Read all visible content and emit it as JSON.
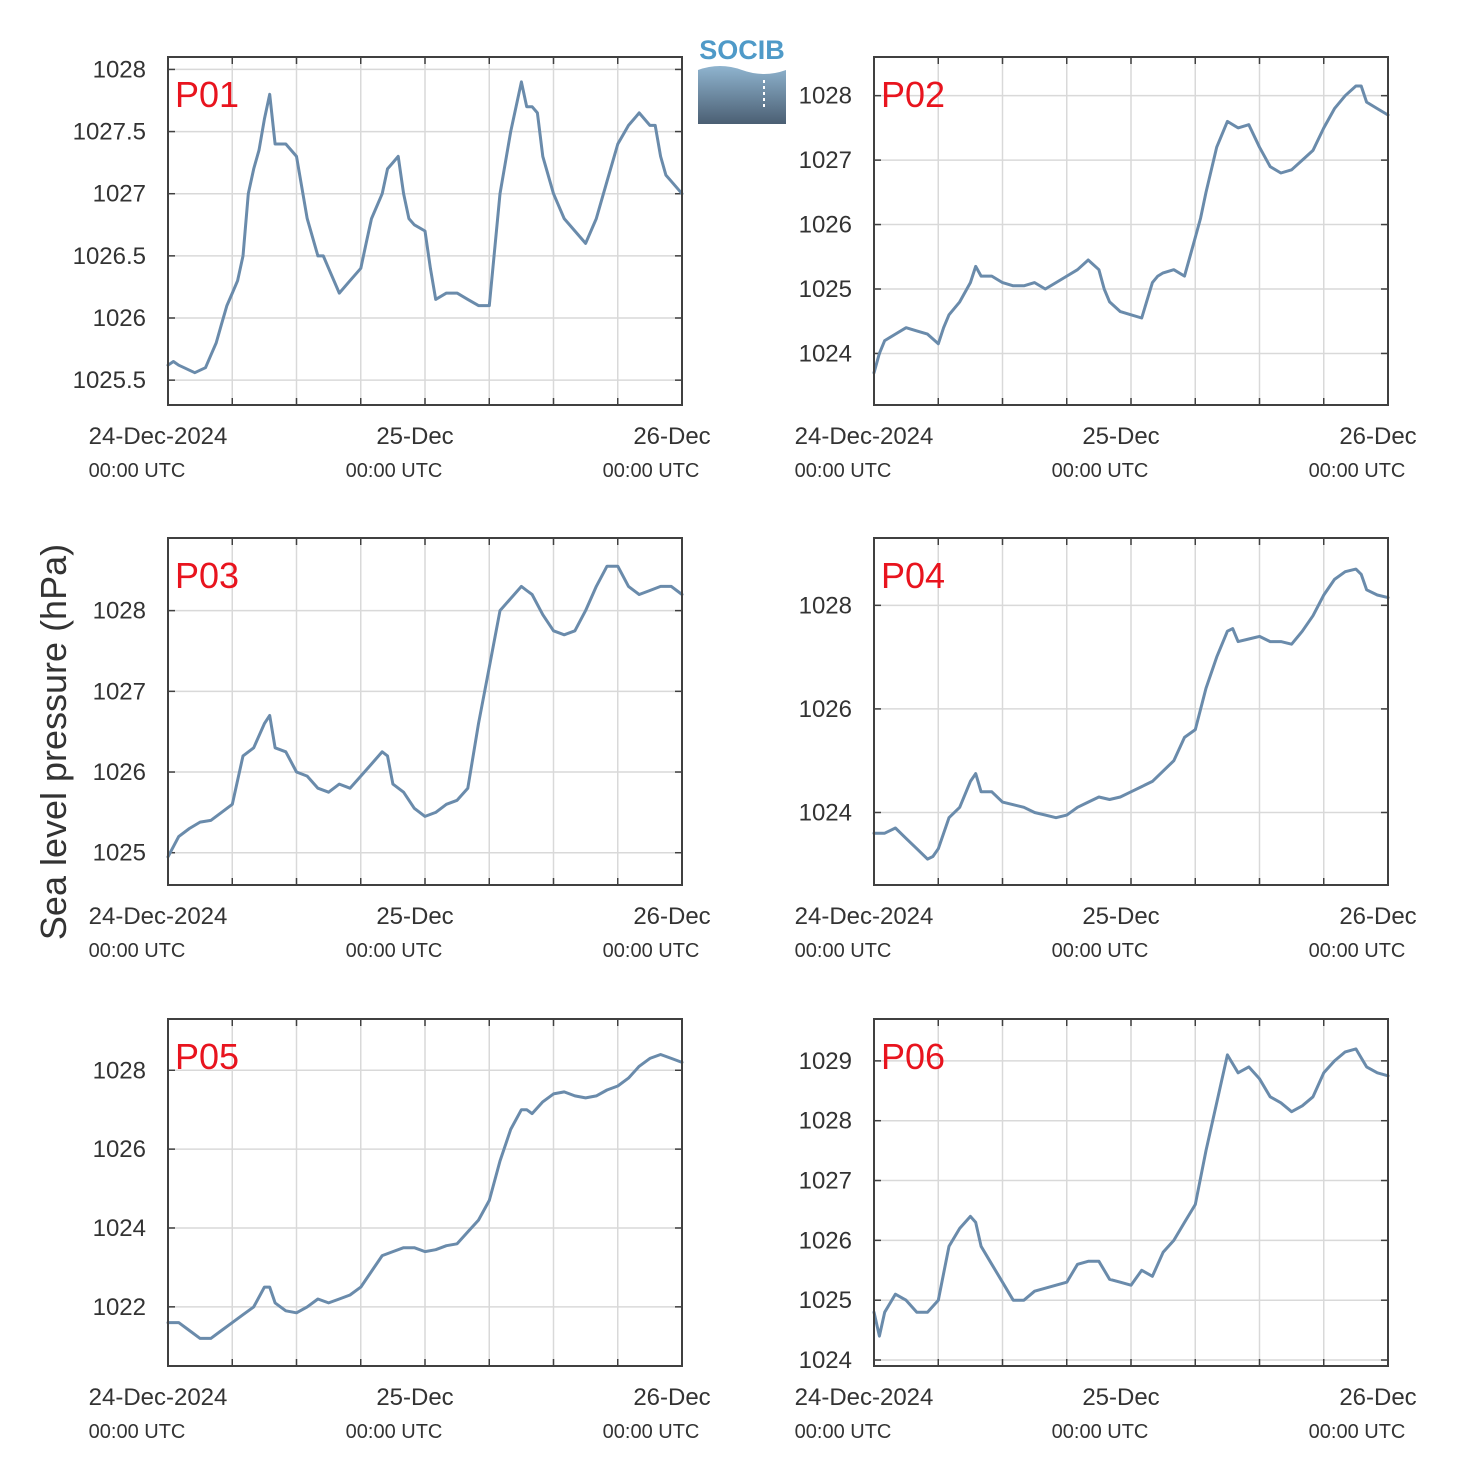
{
  "ylabel": "Sea level pressure (hPa)",
  "logo": {
    "text": "SOCIB",
    "text_color": "#4f9ac8",
    "top_color": "#8fb4cf",
    "bottom_color": "#4b5f73"
  },
  "colors": {
    "line": "#6a8bab",
    "label": "#e8141e",
    "grid": "#d9d9d9",
    "axis": "#404040"
  },
  "x_ticks": [
    {
      "hour": 0,
      "label": "24-Dec-2024",
      "sub": "00:00 UTC"
    },
    {
      "hour": 24,
      "label": "25-Dec",
      "sub": "00:00 UTC"
    },
    {
      "hour": 48,
      "label": "26-Dec",
      "sub": "00:00 UTC"
    }
  ],
  "chart_data": [
    {
      "type": "line",
      "label": "P01",
      "xlim": [
        0,
        48
      ],
      "ylim": [
        1025.3,
        1028.1
      ],
      "yticks": [
        1025.5,
        1026,
        1026.5,
        1027,
        1027.5,
        1028
      ],
      "ytick_labels": [
        "1025.5",
        "1026",
        "1026.5",
        "1027",
        "1027.5",
        "1028"
      ],
      "grid": true,
      "x_unit": "hours since 24-Dec-2024 00:00 UTC",
      "x": [
        0,
        0.5,
        1,
        1.5,
        2,
        2.5,
        3,
        3.5,
        4,
        4.5,
        5,
        5.5,
        6,
        6.5,
        7,
        7.5,
        8,
        8.5,
        9,
        9.5,
        10,
        11,
        12,
        13,
        14,
        14.5,
        15,
        16,
        17,
        18,
        18.5,
        19,
        20,
        20.5,
        21,
        21.5,
        22,
        22.5,
        23,
        24,
        24.5,
        25,
        26,
        27,
        28,
        29,
        30,
        31,
        32,
        33,
        33.5,
        34,
        34.5,
        35,
        36,
        37,
        38,
        39,
        40,
        41,
        42,
        43,
        44,
        45,
        45.5,
        46,
        46.5,
        47,
        48
      ],
      "y": [
        1025.62,
        1025.65,
        1025.62,
        1025.6,
        1025.58,
        1025.56,
        1025.58,
        1025.6,
        1025.7,
        1025.8,
        1025.95,
        1026.1,
        1026.2,
        1026.3,
        1026.5,
        1027.0,
        1027.2,
        1027.35,
        1027.6,
        1027.8,
        1027.4,
        1027.4,
        1027.3,
        1026.8,
        1026.5,
        1026.5,
        1026.4,
        1026.2,
        1026.3,
        1026.4,
        1026.6,
        1026.8,
        1027.0,
        1027.2,
        1027.25,
        1027.3,
        1027.0,
        1026.8,
        1026.75,
        1026.7,
        1026.4,
        1026.15,
        1026.2,
        1026.2,
        1026.15,
        1026.1,
        1026.1,
        1027.0,
        1027.5,
        1027.9,
        1027.7,
        1027.7,
        1027.65,
        1027.3,
        1027.0,
        1026.8,
        1026.7,
        1026.6,
        1026.8,
        1027.1,
        1027.4,
        1027.55,
        1027.65,
        1027.55,
        1027.55,
        1027.3,
        1027.15,
        1027.1,
        1027.0
      ]
    },
    {
      "type": "line",
      "label": "P02",
      "xlim": [
        0,
        48
      ],
      "ylim": [
        1023.2,
        1028.6
      ],
      "yticks": [
        1024,
        1025,
        1026,
        1027,
        1028
      ],
      "ytick_labels": [
        "1024",
        "1025",
        "1026",
        "1027",
        "1028"
      ],
      "grid": true,
      "x_unit": "hours since 24-Dec-2024 00:00 UTC",
      "x": [
        0,
        0.5,
        1,
        2,
        3,
        4,
        5,
        6,
        6.5,
        7,
        8,
        9,
        9.5,
        10,
        11,
        12,
        13,
        14,
        15,
        16,
        17,
        18,
        19,
        20,
        21,
        21.5,
        22,
        23,
        24,
        25,
        26,
        26.5,
        27,
        28,
        29,
        29.5,
        30,
        30.5,
        31,
        32,
        33,
        34,
        35,
        36,
        37,
        38,
        39,
        40,
        41,
        42,
        43,
        44,
        45,
        45.5,
        46,
        47,
        48
      ],
      "y": [
        1023.7,
        1024.0,
        1024.2,
        1024.3,
        1024.4,
        1024.35,
        1024.3,
        1024.15,
        1024.4,
        1024.6,
        1024.8,
        1025.1,
        1025.35,
        1025.2,
        1025.2,
        1025.1,
        1025.05,
        1025.05,
        1025.1,
        1025.0,
        1025.1,
        1025.2,
        1025.3,
        1025.45,
        1025.3,
        1025.0,
        1024.8,
        1024.65,
        1024.6,
        1024.55,
        1025.1,
        1025.2,
        1025.25,
        1025.3,
        1025.2,
        1025.5,
        1025.8,
        1026.1,
        1026.5,
        1027.2,
        1027.6,
        1027.5,
        1027.55,
        1027.2,
        1026.9,
        1026.8,
        1026.85,
        1027.0,
        1027.15,
        1027.5,
        1027.8,
        1028.0,
        1028.15,
        1028.15,
        1027.9,
        1027.8,
        1027.7
      ]
    },
    {
      "type": "line",
      "label": "P03",
      "xlim": [
        0,
        48
      ],
      "ylim": [
        1024.6,
        1028.9
      ],
      "yticks": [
        1025,
        1026,
        1027,
        1028
      ],
      "ytick_labels": [
        "1025",
        "1026",
        "1027",
        "1028"
      ],
      "grid": true,
      "x_unit": "hours since 24-Dec-2024 00:00 UTC",
      "x": [
        0,
        1,
        2,
        3,
        4,
        5,
        6,
        7,
        8,
        9,
        9.5,
        10,
        11,
        12,
        13,
        14,
        15,
        16,
        17,
        18,
        19,
        20,
        20.5,
        21,
        22,
        23,
        24,
        25,
        26,
        27,
        28,
        29,
        30,
        31,
        32,
        33,
        33.5,
        34,
        35,
        36,
        37,
        38,
        39,
        40,
        41,
        42,
        43,
        44,
        45,
        46,
        47,
        48
      ],
      "y": [
        1024.95,
        1025.2,
        1025.3,
        1025.38,
        1025.4,
        1025.5,
        1025.6,
        1026.2,
        1026.3,
        1026.6,
        1026.7,
        1026.3,
        1026.25,
        1026.0,
        1025.95,
        1025.8,
        1025.75,
        1025.85,
        1025.8,
        1025.95,
        1026.1,
        1026.25,
        1026.2,
        1025.85,
        1025.75,
        1025.55,
        1025.45,
        1025.5,
        1025.6,
        1025.65,
        1025.8,
        1026.6,
        1027.3,
        1028.0,
        1028.15,
        1028.3,
        1028.25,
        1028.2,
        1027.95,
        1027.75,
        1027.7,
        1027.75,
        1028.0,
        1028.3,
        1028.55,
        1028.55,
        1028.3,
        1028.2,
        1028.25,
        1028.3,
        1028.3,
        1028.2
      ]
    },
    {
      "type": "line",
      "label": "P04",
      "xlim": [
        0,
        48
      ],
      "ylim": [
        1022.6,
        1029.3
      ],
      "yticks": [
        1024,
        1026,
        1028
      ],
      "ytick_labels": [
        "1024",
        "1026",
        "1028"
      ],
      "grid": true,
      "x_unit": "hours since 24-Dec-2024 00:00 UTC",
      "x": [
        0,
        1,
        2,
        3,
        4,
        5,
        5.5,
        6,
        7,
        8,
        9,
        9.5,
        10,
        11,
        12,
        13,
        14,
        15,
        16,
        17,
        18,
        19,
        20,
        21,
        22,
        23,
        24,
        25,
        26,
        27,
        28,
        29,
        30,
        31,
        32,
        33,
        33.5,
        34,
        35,
        36,
        37,
        38,
        39,
        40,
        41,
        42,
        43,
        44,
        45,
        45.5,
        46,
        47,
        48
      ],
      "y": [
        1023.6,
        1023.6,
        1023.7,
        1023.5,
        1023.3,
        1023.1,
        1023.15,
        1023.3,
        1023.9,
        1024.1,
        1024.6,
        1024.75,
        1024.4,
        1024.4,
        1024.2,
        1024.15,
        1024.1,
        1024.0,
        1023.95,
        1023.9,
        1023.95,
        1024.1,
        1024.2,
        1024.3,
        1024.25,
        1024.3,
        1024.4,
        1024.5,
        1024.6,
        1024.8,
        1025.0,
        1025.45,
        1025.6,
        1026.4,
        1027.0,
        1027.5,
        1027.55,
        1027.3,
        1027.35,
        1027.4,
        1027.3,
        1027.3,
        1027.25,
        1027.5,
        1027.8,
        1028.2,
        1028.5,
        1028.65,
        1028.7,
        1028.6,
        1028.3,
        1028.2,
        1028.15
      ]
    },
    {
      "type": "line",
      "label": "P05",
      "xlim": [
        0,
        48
      ],
      "ylim": [
        1020.5,
        1029.3
      ],
      "yticks": [
        1022,
        1024,
        1026,
        1028
      ],
      "ytick_labels": [
        "1022",
        "1024",
        "1026",
        "1028"
      ],
      "grid": true,
      "x_unit": "hours since 24-Dec-2024 00:00 UTC",
      "x": [
        0,
        1,
        2,
        3,
        4,
        5,
        6,
        7,
        8,
        9,
        9.5,
        10,
        11,
        12,
        13,
        14,
        15,
        16,
        17,
        18,
        19,
        20,
        21,
        22,
        23,
        24,
        25,
        26,
        27,
        28,
        29,
        30,
        31,
        32,
        33,
        33.5,
        34,
        35,
        36,
        37,
        38,
        39,
        40,
        41,
        42,
        43,
        44,
        45,
        46,
        47,
        48
      ],
      "y": [
        1021.6,
        1021.6,
        1021.4,
        1021.2,
        1021.2,
        1021.4,
        1021.6,
        1021.8,
        1022.0,
        1022.5,
        1022.5,
        1022.1,
        1021.9,
        1021.85,
        1022.0,
        1022.2,
        1022.1,
        1022.2,
        1022.3,
        1022.5,
        1022.9,
        1023.3,
        1023.4,
        1023.5,
        1023.5,
        1023.4,
        1023.45,
        1023.55,
        1023.6,
        1023.9,
        1024.2,
        1024.7,
        1025.7,
        1026.5,
        1027.0,
        1027.0,
        1026.9,
        1027.2,
        1027.4,
        1027.45,
        1027.35,
        1027.3,
        1027.35,
        1027.5,
        1027.6,
        1027.8,
        1028.1,
        1028.3,
        1028.4,
        1028.3,
        1028.2
      ]
    },
    {
      "type": "line",
      "label": "P06",
      "xlim": [
        0,
        48
      ],
      "ylim": [
        1023.9,
        1029.7
      ],
      "yticks": [
        1024,
        1025,
        1026,
        1027,
        1028,
        1029
      ],
      "ytick_labels": [
        "1024",
        "1025",
        "1026",
        "1027",
        "1028",
        "1029"
      ],
      "grid": true,
      "x_unit": "hours since 24-Dec-2024 00:00 UTC",
      "x": [
        0,
        0.5,
        1,
        2,
        3,
        4,
        5,
        6,
        7,
        8,
        9,
        9.5,
        10,
        11,
        12,
        13,
        14,
        15,
        16,
        17,
        18,
        19,
        20,
        21,
        22,
        23,
        24,
        25,
        26,
        27,
        28,
        29,
        30,
        31,
        32,
        33,
        34,
        35,
        36,
        37,
        38,
        39,
        40,
        41,
        42,
        43,
        44,
        45,
        46,
        47,
        48
      ],
      "y": [
        1024.8,
        1024.4,
        1024.8,
        1025.1,
        1025.0,
        1024.8,
        1024.8,
        1025.0,
        1025.9,
        1026.2,
        1026.4,
        1026.3,
        1025.9,
        1025.6,
        1025.3,
        1025.0,
        1025.0,
        1025.15,
        1025.2,
        1025.25,
        1025.3,
        1025.6,
        1025.65,
        1025.65,
        1025.35,
        1025.3,
        1025.25,
        1025.5,
        1025.4,
        1025.8,
        1026.0,
        1026.3,
        1026.6,
        1027.5,
        1028.3,
        1029.1,
        1028.8,
        1028.9,
        1028.7,
        1028.4,
        1028.3,
        1028.15,
        1028.25,
        1028.4,
        1028.8,
        1029.0,
        1029.15,
        1029.2,
        1028.9,
        1028.8,
        1028.75
      ]
    }
  ]
}
